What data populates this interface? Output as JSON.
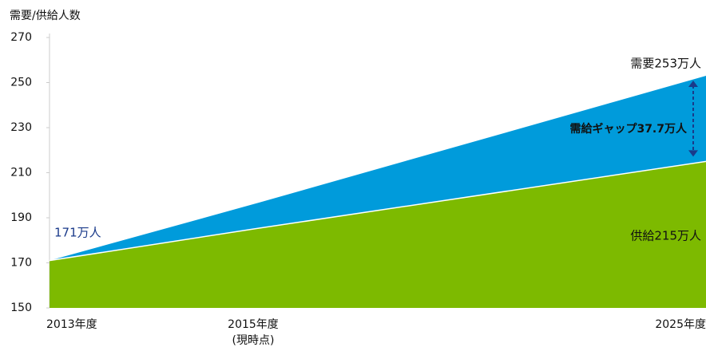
{
  "chart_data": {
    "type": "area",
    "y_axis_label": "需要/供給人数",
    "categories": [
      "2013年度",
      "2015年度",
      "2025年度"
    ],
    "category_note": "(現時点)",
    "series": [
      {
        "name": "需要",
        "color": "#009bdb",
        "values": [
          171,
          196,
          253
        ]
      },
      {
        "name": "供給",
        "color": "#7dba00",
        "values": [
          171,
          185,
          215
        ]
      }
    ],
    "annotations": [
      "171万人",
      "需要253万人",
      "需給ギャップ37.7万人",
      "供給215万人"
    ],
    "ylim": [
      150,
      270
    ],
    "yticks": [
      150,
      170,
      190,
      210,
      230,
      250,
      270
    ]
  }
}
